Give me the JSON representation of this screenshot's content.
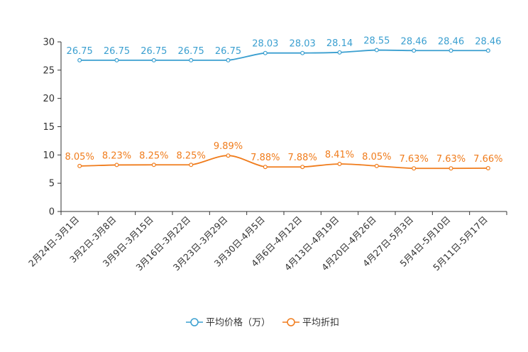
{
  "chart_data": {
    "type": "line",
    "title": "",
    "xlabel": "",
    "ylabel": "",
    "ylim": [
      0,
      30
    ],
    "yticks": [
      0,
      5,
      10,
      15,
      20,
      25,
      30
    ],
    "grid": false,
    "legend_position": "bottom-center",
    "categories": [
      "2月24日-3月1日",
      "3月2日-3月8日",
      "3月9日-3月15日",
      "3月16日-3月22日",
      "3月23日-3月29日",
      "3月30日-4月5日",
      "4月6日-4月12日",
      "4月13日-4月19日",
      "4月20日-4月26日",
      "4月27日-5月3日",
      "5月4日-5月10日",
      "5月11日-5月17日"
    ],
    "series": [
      {
        "name": "平均价格（万）",
        "color": "#3a9fd0",
        "values": [
          26.75,
          26.75,
          26.75,
          26.75,
          26.75,
          28.03,
          28.03,
          28.14,
          28.55,
          28.46,
          28.46,
          28.46
        ],
        "labels": [
          "26.75",
          "26.75",
          "26.75",
          "26.75",
          "26.75",
          "28.03",
          "28.03",
          "28.14",
          "28.55",
          "28.46",
          "28.46",
          "28.46"
        ]
      },
      {
        "name": "平均折扣",
        "color": "#f07c1c",
        "values": [
          8.05,
          8.23,
          8.25,
          8.25,
          9.89,
          7.88,
          7.88,
          8.41,
          8.05,
          7.63,
          7.63,
          7.66
        ],
        "labels": [
          "8.05%",
          "8.23%",
          "8.25%",
          "8.25%",
          "9.89%",
          "7.88%",
          "7.88%",
          "8.41%",
          "8.05%",
          "7.63%",
          "7.63%",
          "7.66%"
        ]
      }
    ]
  }
}
